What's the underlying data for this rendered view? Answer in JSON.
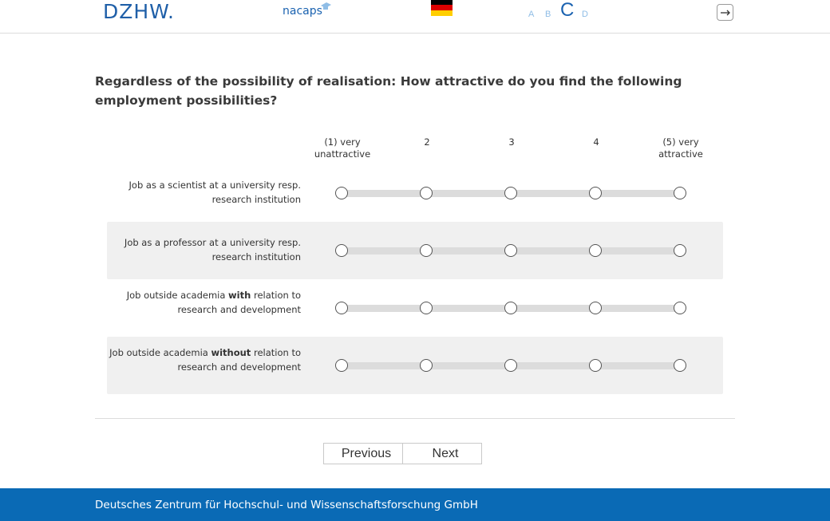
{
  "header": {
    "logo_dzhw": "DZHW.",
    "logo_nacaps": "nacaps",
    "font_sizes": [
      "A",
      "B",
      "C",
      "D"
    ],
    "flag": "german-flag"
  },
  "question": "Regardless of the possibility of realisation: How attractive do you find the following employment possibilities?",
  "scale": [
    "(1) very unattractive",
    "2",
    "3",
    "4",
    "(5) very attractive"
  ],
  "items": [
    {
      "label_pre": "Job as a scientist at a university resp. research institution",
      "label_bold": "",
      "label_post": ""
    },
    {
      "label_pre": "Job as a professor at a university resp. research institution",
      "label_bold": "",
      "label_post": ""
    },
    {
      "label_pre": "Job outside academia ",
      "label_bold": "with",
      "label_post": " relation to research and development"
    },
    {
      "label_pre": "Job outside academia ",
      "label_bold": "without",
      "label_post": " relation to research and development"
    }
  ],
  "nav": {
    "previous": "Previous",
    "next": "Next"
  },
  "footer": "Deutsches Zentrum für Hochschul- und Wissenschaftsforschung GmbH",
  "colors": {
    "brand_blue": "#0a6ab5",
    "logo_blue": "#1f5fa8",
    "row_shade": "#f0f0f0"
  }
}
